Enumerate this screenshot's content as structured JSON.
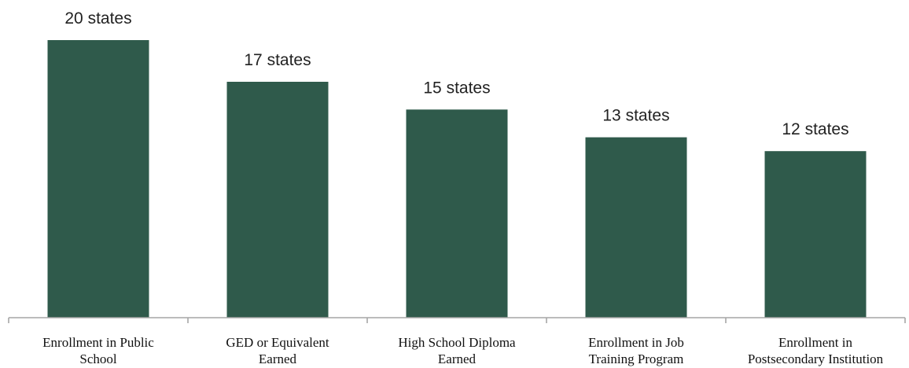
{
  "chart_data": {
    "type": "bar",
    "categories": [
      [
        "Enrollment in Public",
        "School"
      ],
      [
        "GED or Equivalent",
        "Earned"
      ],
      [
        "High School Diploma",
        "Earned"
      ],
      [
        "Enrollment in Job",
        "Training Program"
      ],
      [
        "Enrollment in",
        "Postsecondary Institution"
      ]
    ],
    "values": [
      20,
      17,
      15,
      13,
      12
    ],
    "data_labels": [
      "20 states",
      "17 states",
      "15 states",
      "13 states",
      "12 states"
    ],
    "title": "",
    "xlabel": "",
    "ylabel": "",
    "ylim": [
      0,
      20
    ],
    "grid": false,
    "legend": "none",
    "colors": {
      "bar": "#2f5a4b",
      "axis": "#a6a6a6"
    }
  }
}
